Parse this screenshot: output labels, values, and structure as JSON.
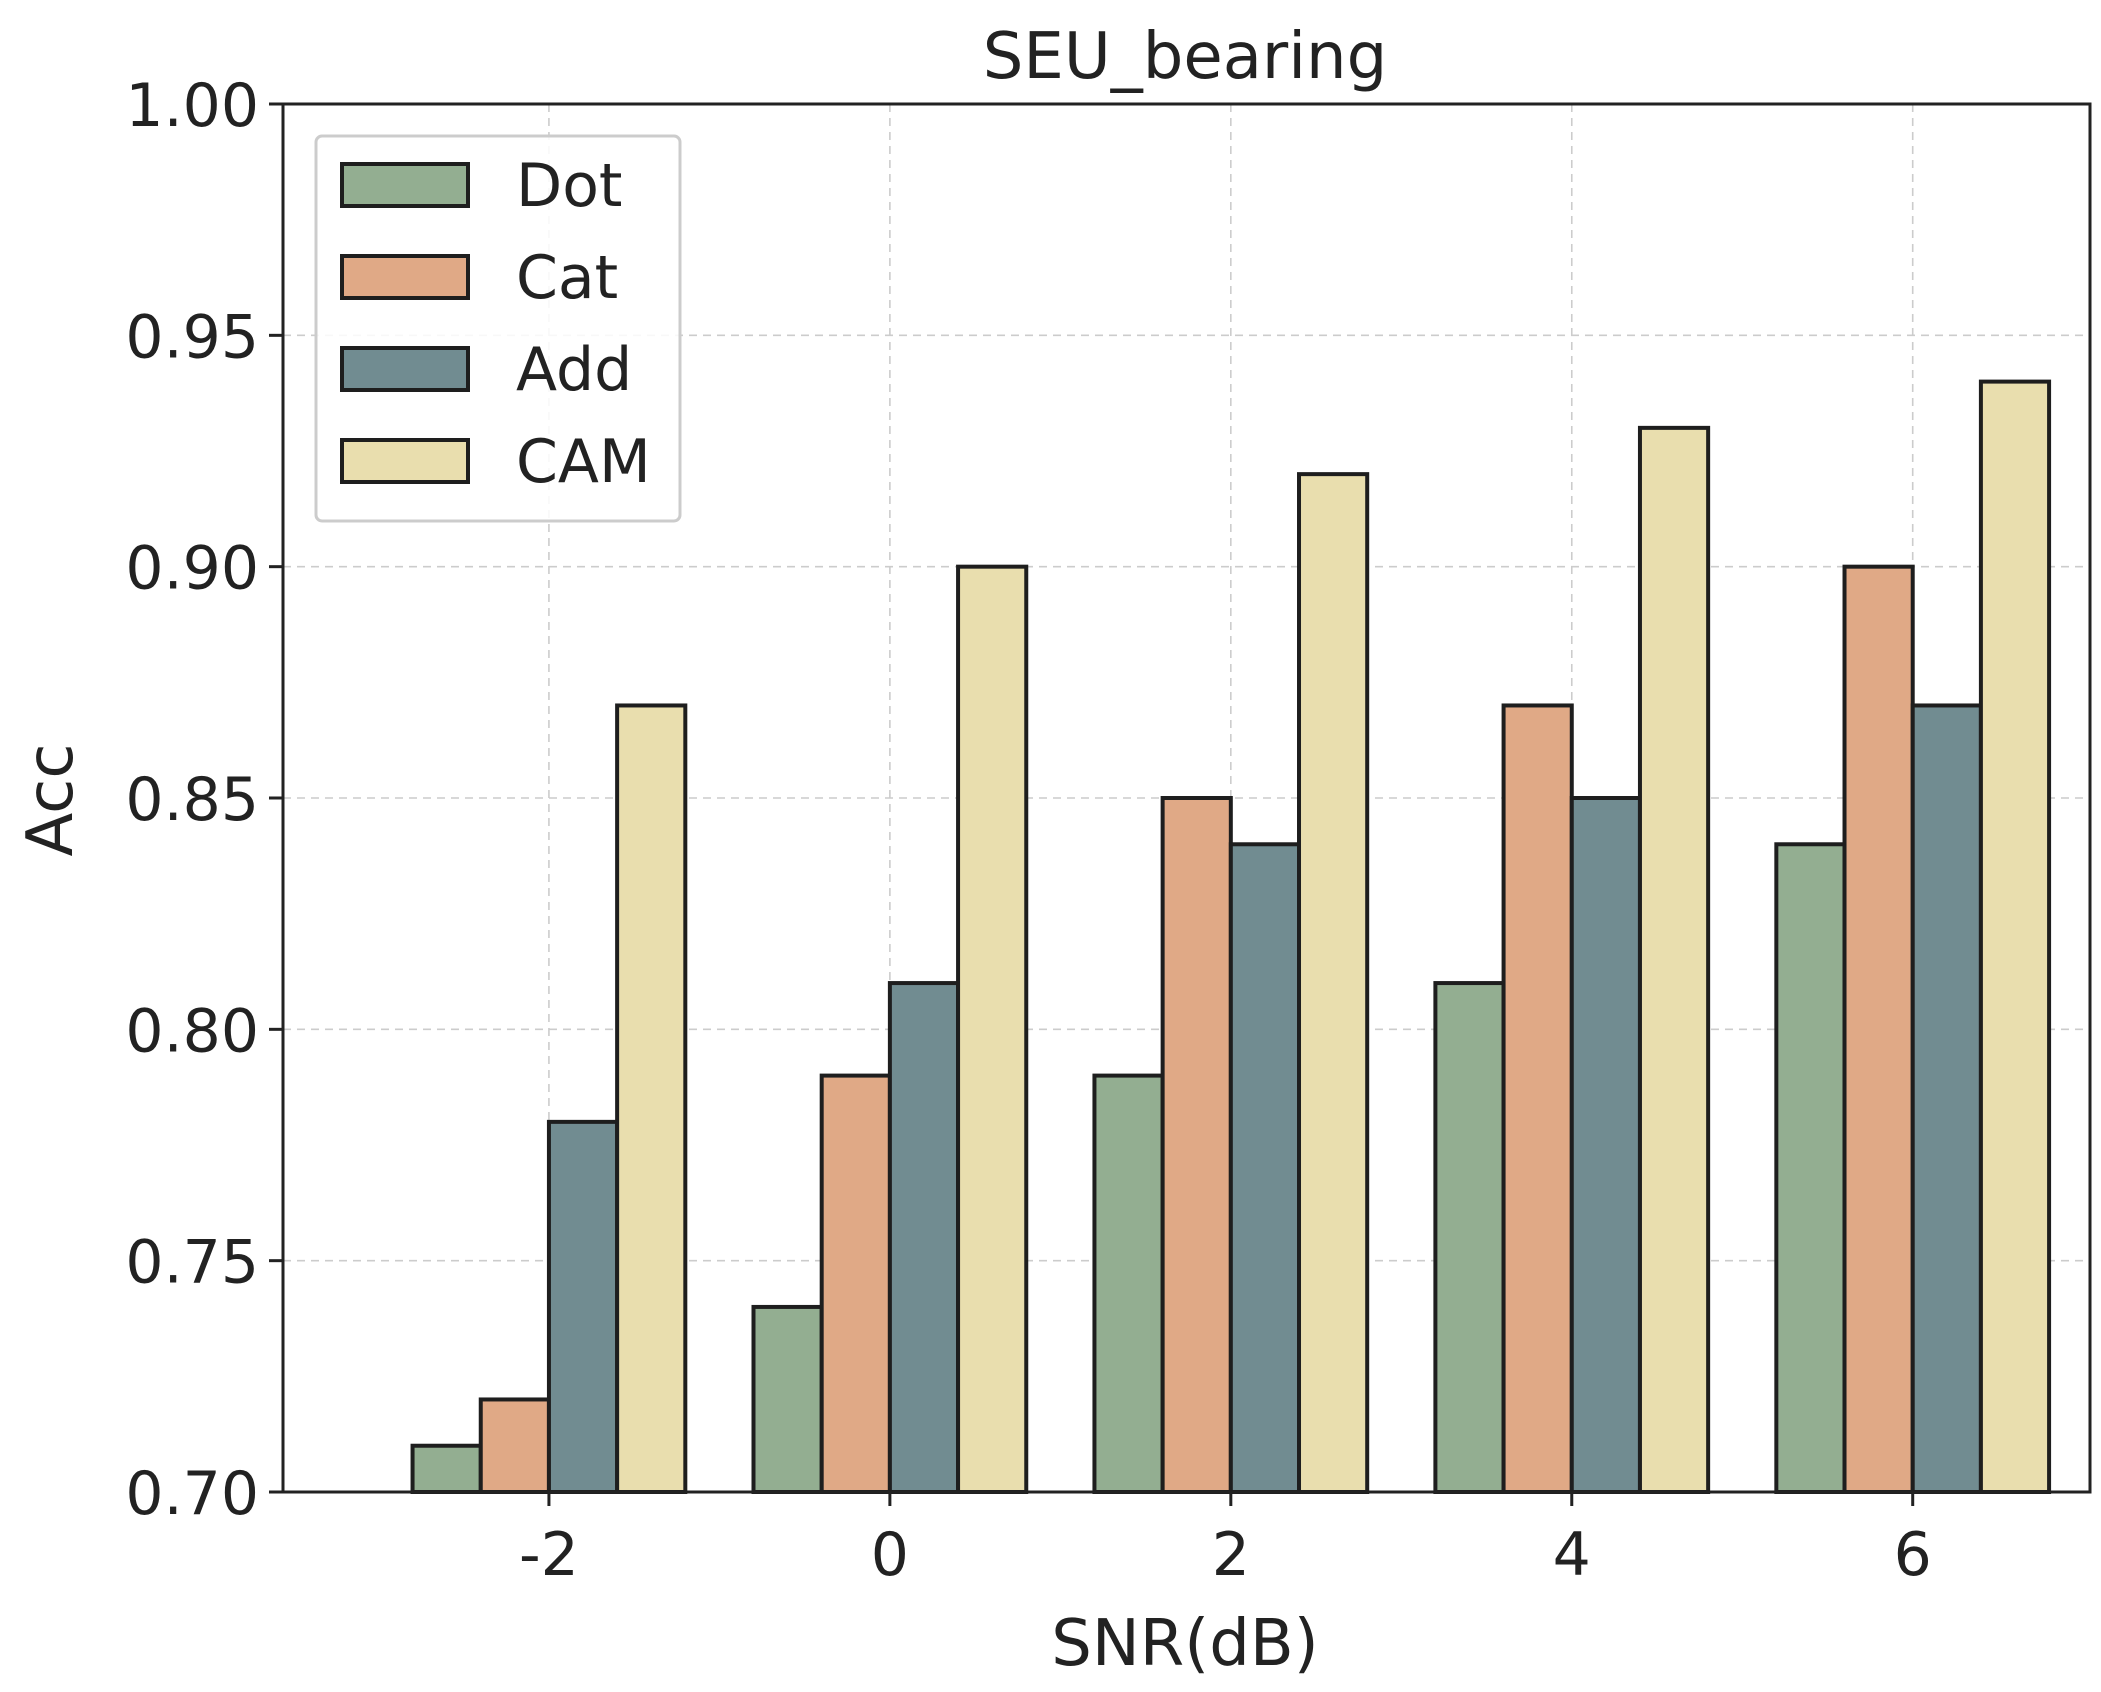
{
  "chart_data": {
    "type": "bar",
    "title": "SEU_bearing",
    "xlabel": "SNR(dB)",
    "ylabel": "Acc",
    "categories": [
      "-2",
      "0",
      "2",
      "4",
      "6"
    ],
    "ylim": [
      0.7,
      1.0
    ],
    "yticks": [
      "0.70",
      "0.75",
      "0.80",
      "0.85",
      "0.90",
      "0.95",
      "1.00"
    ],
    "grid": true,
    "legend_position": "top-left",
    "series": [
      {
        "name": "Dot",
        "color": "#93ae91",
        "values": [
          0.71,
          0.74,
          0.79,
          0.81,
          0.84
        ]
      },
      {
        "name": "Cat",
        "color": "#e0a986",
        "values": [
          0.72,
          0.79,
          0.85,
          0.87,
          0.9
        ]
      },
      {
        "name": "Add",
        "color": "#718c91",
        "values": [
          0.78,
          0.81,
          0.84,
          0.85,
          0.87
        ]
      },
      {
        "name": "CAM",
        "color": "#e9deae",
        "values": [
          0.87,
          0.9,
          0.92,
          0.93,
          0.94
        ]
      }
    ]
  }
}
